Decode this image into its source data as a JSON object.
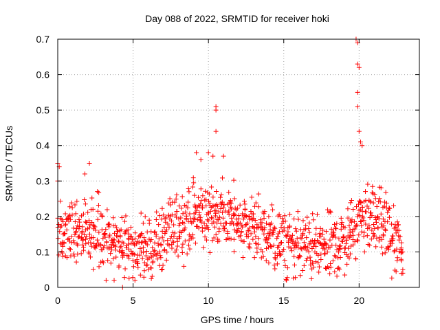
{
  "chart_data": {
    "type": "scatter",
    "title": "Day 088 of 2022, SRMTID for receiver hoki",
    "xlabel": "GPS time / hours",
    "ylabel": "SRMTID / TECUs",
    "xlim": [
      0,
      24
    ],
    "ylim": [
      0,
      0.7
    ],
    "xticks": [
      0,
      5,
      10,
      15,
      20
    ],
    "yticks": [
      0,
      0.1,
      0.2,
      0.3,
      0.4,
      0.5,
      0.6,
      0.7
    ],
    "xtick_labels": [
      "0",
      "5",
      "10",
      "15",
      "20"
    ],
    "ytick_labels": [
      "0",
      "0.1",
      "0.2",
      "0.3",
      "0.4",
      "0.5",
      "0.6",
      "0.7"
    ],
    "grid": true,
    "marker": "+",
    "series": [
      {
        "name": "SRMTID",
        "color": "#ff0000",
        "x_start": 0.0,
        "x_step": 0.1,
        "spread": 0.045,
        "baseline_x": [
          0.0,
          0.3,
          1.0,
          2.0,
          3.0,
          4.0,
          5.0,
          6.0,
          7.0,
          8.0,
          9.0,
          10.0,
          11.0,
          12.0,
          13.0,
          14.0,
          15.0,
          16.0,
          17.0,
          18.0,
          19.0,
          19.5,
          20.0,
          20.5,
          21.0,
          22.0,
          22.8
        ],
        "baseline_y": [
          0.15,
          0.14,
          0.17,
          0.16,
          0.13,
          0.12,
          0.11,
          0.1,
          0.14,
          0.18,
          0.2,
          0.21,
          0.2,
          0.19,
          0.17,
          0.14,
          0.12,
          0.12,
          0.11,
          0.11,
          0.13,
          0.15,
          0.2,
          0.2,
          0.2,
          0.16,
          0.1
        ],
        "outliers_x": [
          0.0,
          0.0,
          0.1,
          1.8,
          2.1,
          4.3,
          9.2,
          9.5,
          10.0,
          10.3,
          10.5,
          10.5,
          10.5,
          11.0,
          19.8,
          19.9,
          19.9,
          19.9,
          19.9,
          20.0,
          20.0,
          20.1,
          20.2,
          22.9,
          22.9
        ],
        "outliers_y": [
          0.35,
          0.3,
          0.34,
          0.32,
          0.35,
          0.0,
          0.38,
          0.36,
          0.38,
          0.37,
          0.51,
          0.5,
          0.44,
          0.37,
          0.7,
          0.69,
          0.63,
          0.55,
          0.51,
          0.62,
          0.44,
          0.41,
          0.4,
          0.04,
          0.05
        ]
      }
    ]
  }
}
